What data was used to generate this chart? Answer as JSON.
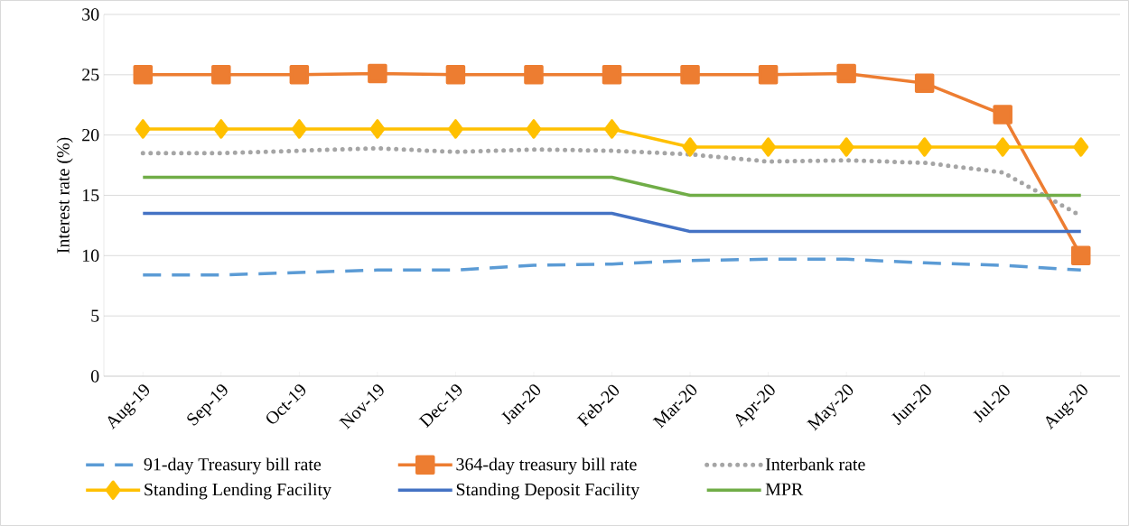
{
  "chart_data": {
    "type": "line",
    "ylabel": "Interest rate (%)",
    "categories": [
      "Aug-19",
      "Sep-19",
      "Oct-19",
      "Nov-19",
      "Dec-19",
      "Jan-20",
      "Feb-20",
      "Mar-20",
      "Apr-20",
      "May-20",
      "Jun-20",
      "Jul-20",
      "Aug-20"
    ],
    "series": [
      {
        "name": "91-day Treasury bill rate",
        "color": "#5b9bd5",
        "line_style": "dashed",
        "marker": "none",
        "values": [
          8.4,
          8.4,
          8.6,
          8.8,
          8.8,
          9.2,
          9.3,
          9.6,
          9.7,
          9.7,
          9.4,
          9.2,
          8.8
        ]
      },
      {
        "name": "364-day treasury bill rate",
        "color": "#ed7d31",
        "line_style": "solid",
        "marker": "square",
        "values": [
          25.0,
          25.0,
          25.0,
          25.1,
          25.0,
          25.0,
          25.0,
          25.0,
          25.0,
          25.1,
          24.3,
          21.7,
          10.0
        ]
      },
      {
        "name": "Interbank rate",
        "color": "#a5a5a5",
        "line_style": "dotted",
        "marker": "none",
        "values": [
          18.5,
          18.5,
          18.7,
          18.9,
          18.6,
          18.8,
          18.7,
          18.4,
          17.8,
          17.9,
          17.7,
          16.9,
          13.3
        ]
      },
      {
        "name": "Standing Lending Facility",
        "color": "#ffc000",
        "line_style": "solid",
        "marker": "diamond",
        "values": [
          20.5,
          20.5,
          20.5,
          20.5,
          20.5,
          20.5,
          20.5,
          19,
          19,
          19,
          19,
          19,
          19
        ]
      },
      {
        "name": "Standing Deposit Facility",
        "color": "#4472c4",
        "line_style": "solid",
        "marker": "none",
        "values": [
          13.5,
          13.5,
          13.5,
          13.5,
          13.5,
          13.5,
          13.5,
          12,
          12,
          12,
          12,
          12,
          12
        ]
      },
      {
        "name": "MPR",
        "color": "#70ad47",
        "line_style": "solid",
        "marker": "none",
        "values": [
          16.5,
          16.5,
          16.5,
          16.5,
          16.5,
          16.5,
          16.5,
          15,
          15,
          15,
          15,
          15,
          15
        ]
      }
    ],
    "ylim": [
      0,
      30
    ],
    "yticks": [
      0,
      5,
      10,
      15,
      20,
      25,
      30
    ],
    "grid": "y",
    "legend": "bottom"
  }
}
